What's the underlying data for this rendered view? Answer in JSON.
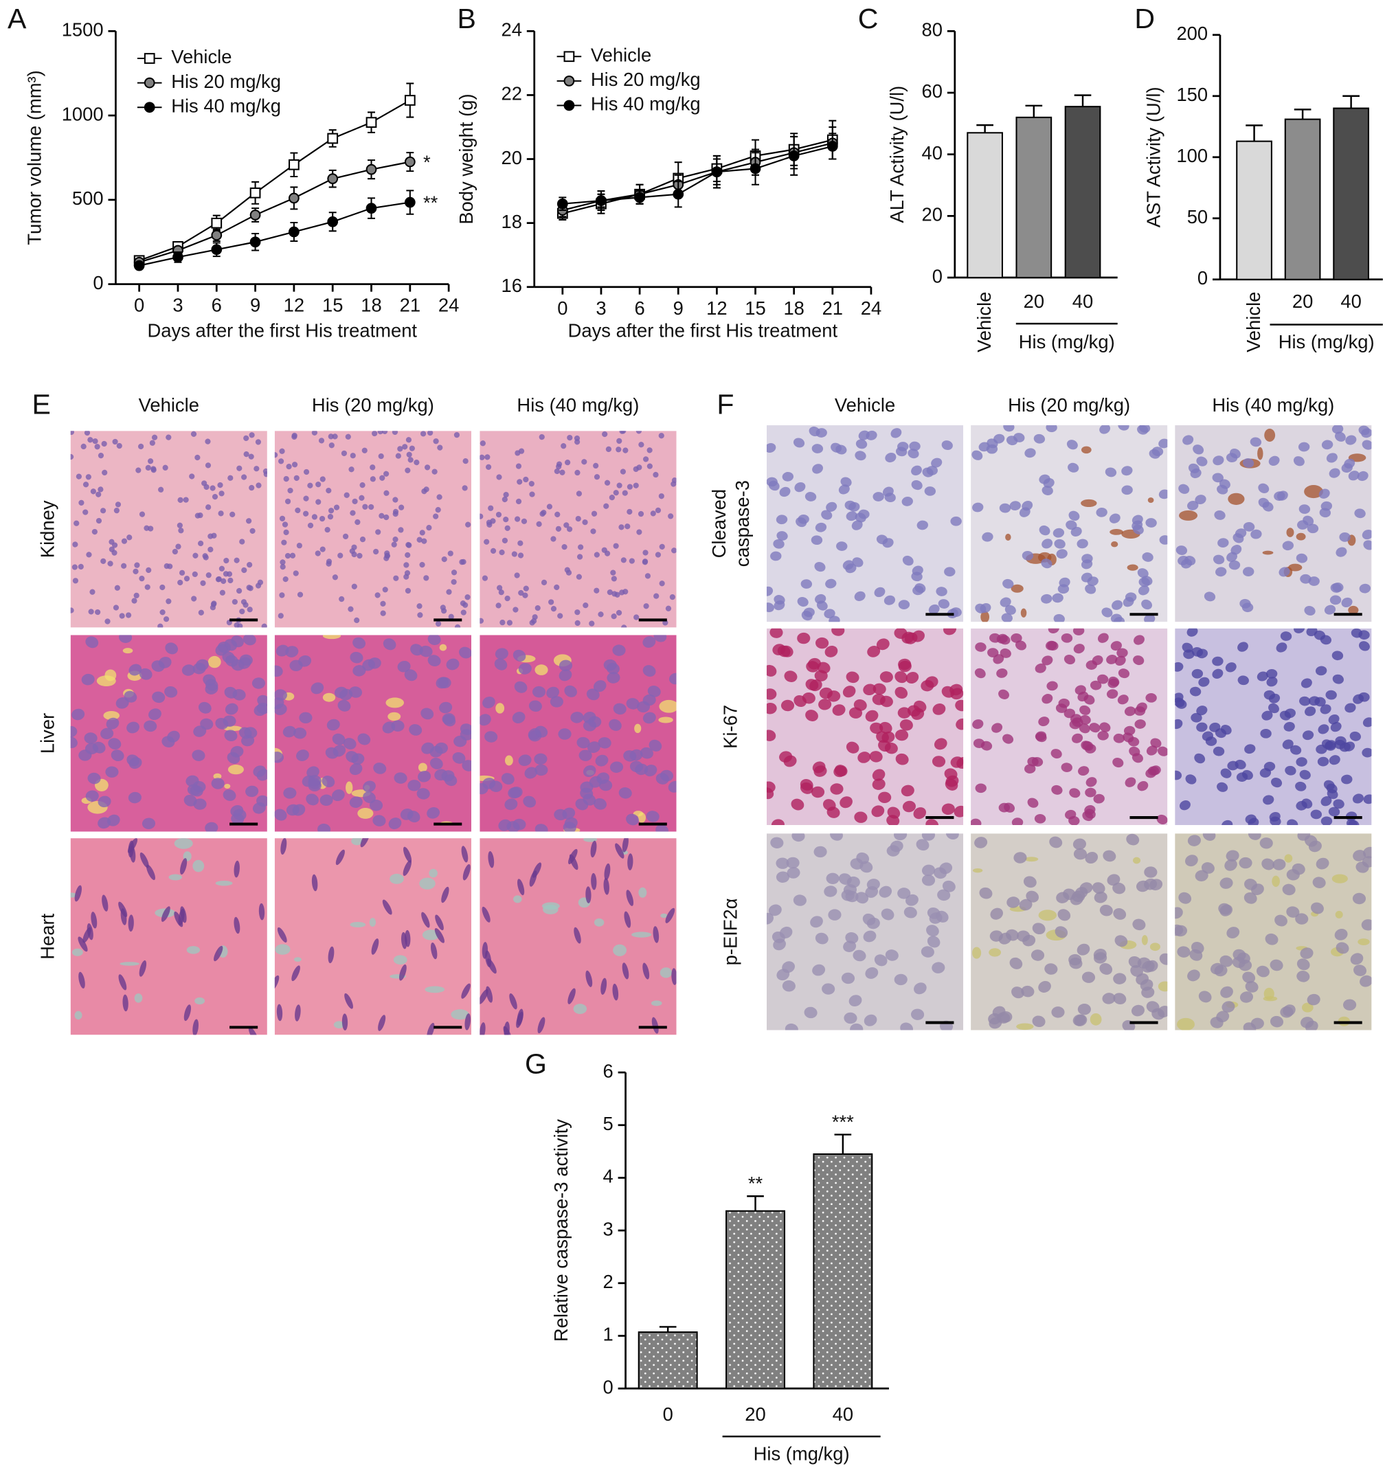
{
  "chart_data": [
    {
      "type": "line",
      "label": "A",
      "x": [
        0,
        3,
        6,
        9,
        12,
        15,
        18,
        21
      ],
      "xlim": [
        0,
        24
      ],
      "xticks": [
        0,
        3,
        6,
        9,
        12,
        15,
        18,
        21,
        24
      ],
      "ylim": [
        0,
        1500
      ],
      "yticks": [
        0,
        500,
        1000,
        1500
      ],
      "x_label": "Days after the first His treatment",
      "y_label": "Tumor volume (mm³)",
      "legend": "upper left",
      "series": [
        {
          "name": "Vehicle",
          "marker": "square",
          "color": "#ffffff",
          "values": [
            140,
            223,
            362,
            541,
            708,
            864,
            959,
            1090
          ],
          "errors": [
            20,
            25,
            45,
            65,
            70,
            50,
            60,
            100
          ]
        },
        {
          "name": "His 20 mg/kg",
          "marker": "circle",
          "color": "#808080",
          "values": [
            130,
            200,
            290,
            410,
            510,
            625,
            680,
            725
          ],
          "errors": [
            15,
            20,
            35,
            40,
            65,
            50,
            55,
            55
          ],
          "significance": "*"
        },
        {
          "name": "His 40 mg/kg",
          "marker": "circle",
          "color": "#000000",
          "values": [
            110,
            160,
            205,
            250,
            310,
            370,
            450,
            485
          ],
          "errors": [
            15,
            30,
            40,
            50,
            55,
            55,
            60,
            70
          ],
          "significance": "**"
        }
      ]
    },
    {
      "type": "line",
      "label": "B",
      "x": [
        0,
        3,
        6,
        9,
        12,
        15,
        18,
        21
      ],
      "xlim": [
        0,
        24
      ],
      "xticks": [
        0,
        3,
        6,
        9,
        12,
        15,
        18,
        21,
        24
      ],
      "ylim": [
        16,
        24
      ],
      "yticks": [
        16,
        18,
        20,
        22,
        24
      ],
      "x_label": "Days after the first His treatment",
      "y_label": "Body weight (g)",
      "legend": "upper left",
      "series": [
        {
          "name": "Vehicle",
          "marker": "square",
          "color": "#ffffff",
          "values": [
            18.3,
            18.6,
            18.9,
            19.4,
            19.7,
            20.1,
            20.3,
            20.6
          ],
          "errors": [
            0.2,
            0.3,
            0.3,
            0.5,
            0.4,
            0.5,
            0.5,
            0.6
          ]
        },
        {
          "name": "His 20 mg/kg",
          "marker": "circle",
          "color": "#808080",
          "values": [
            18.4,
            18.7,
            18.9,
            19.2,
            19.6,
            19.9,
            20.2,
            20.5
          ],
          "errors": [
            0.2,
            0.2,
            0.3,
            0.3,
            0.4,
            0.4,
            0.5,
            0.5
          ]
        },
        {
          "name": "His 40 mg/kg",
          "marker": "circle",
          "color": "#000000",
          "values": [
            18.6,
            18.7,
            18.8,
            18.9,
            19.6,
            19.7,
            20.1,
            20.4
          ],
          "errors": [
            0.2,
            0.3,
            0.2,
            0.4,
            0.5,
            0.5,
            0.6,
            0.4
          ]
        }
      ]
    },
    {
      "type": "bar",
      "label": "C",
      "categories": [
        "Vehicle",
        "20",
        "40"
      ],
      "group_label": "His (mg/kg)",
      "y_label": "ALT Activity (U/l)",
      "ylim": [
        0,
        80
      ],
      "yticks": [
        0,
        20,
        40,
        60,
        80
      ],
      "colors": [
        "#d9d9d9",
        "#8c8c8c",
        "#4d4d4d"
      ],
      "values": [
        47,
        52,
        55.5
      ],
      "errors": [
        2.5,
        3.8,
        3.7
      ]
    },
    {
      "type": "bar",
      "label": "D",
      "categories": [
        "Vehicle",
        "20",
        "40"
      ],
      "group_label": "His (mg/kg)",
      "y_label": "AST Activity (U/l)",
      "ylim": [
        0,
        200
      ],
      "yticks": [
        0,
        50,
        100,
        150,
        200
      ],
      "colors": [
        "#d9d9d9",
        "#8c8c8c",
        "#4d4d4d"
      ],
      "values": [
        113,
        131,
        140
      ],
      "errors": [
        13,
        8,
        10
      ]
    },
    {
      "type": "bar",
      "label": "G",
      "categories": [
        "0",
        "20",
        "40"
      ],
      "group_label": "His (mg/kg)",
      "y_label": "Relative caspase-3 activity",
      "ylim": [
        0,
        6
      ],
      "yticks": [
        0,
        1,
        2,
        3,
        4,
        5,
        6
      ],
      "color": "#808080",
      "pattern": "dots",
      "values": [
        1.07,
        3.37,
        4.45
      ],
      "errors": [
        0.1,
        0.28,
        0.37
      ],
      "significance": [
        null,
        "**",
        "***"
      ]
    }
  ],
  "micrographs": [
    {
      "label": "E",
      "columns": [
        "Vehicle",
        "His (20 mg/kg)",
        "His (40 mg/kg)"
      ],
      "rows": [
        "Kidney",
        "Liver",
        "Heart"
      ]
    },
    {
      "label": "F",
      "columns": [
        "Vehicle",
        "His (20 mg/kg)",
        "His (40 mg/kg)"
      ],
      "rows": [
        "Cleaved caspase-3",
        "Ki-67",
        "p-EIF2α"
      ]
    }
  ]
}
